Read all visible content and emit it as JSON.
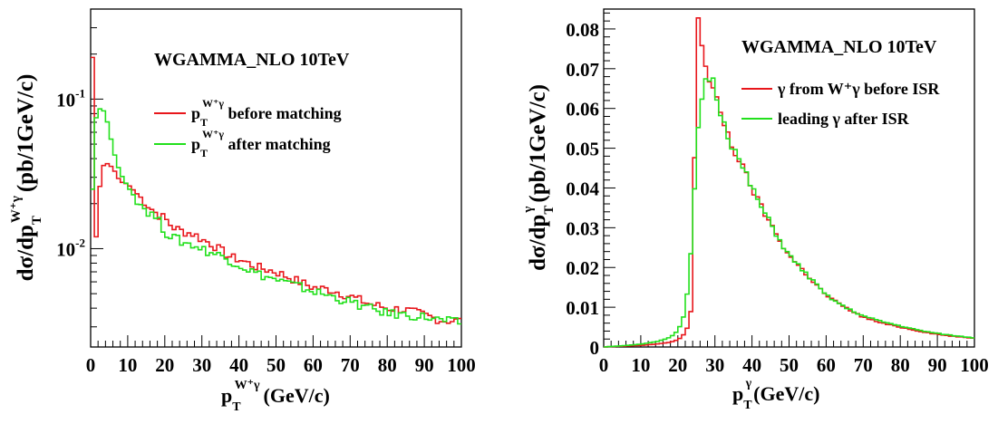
{
  "colors": {
    "before": "#e8161b",
    "after": "#22e01c",
    "axis": "#000000"
  },
  "charts": [
    {
      "title": "WGAMMA_NLO 10TeV",
      "y_label": {
        "main": "dσ/dp",
        "sub": "T",
        "sup": "W⁺γ",
        "unit": "(pb/1GeV/c)"
      },
      "x_label": {
        "main": "p",
        "sub": "T",
        "sup": "W⁺γ",
        "unit": "(GeV/c)"
      },
      "x_ticks": [
        "0",
        "10",
        "20",
        "30",
        "40",
        "50",
        "60",
        "70",
        "80",
        "90",
        "100"
      ],
      "y_ticks": [
        {
          "base": "10",
          "exp": "-1",
          "value": 0.1
        },
        {
          "base": "10",
          "exp": "-2",
          "value": 0.01
        }
      ],
      "legend": [
        {
          "main": "p",
          "sub": "T",
          "sup": "W⁺γ",
          "text": " before matching",
          "color": "#e8161b"
        },
        {
          "main": "p",
          "sub": "T",
          "sup": "W⁺γ",
          "text": " after matching",
          "color": "#22e01c"
        }
      ]
    },
    {
      "title": "WGAMMA_NLO 10TeV",
      "y_label": {
        "main": "dσ/dp",
        "sub": "T",
        "sup": "γ",
        "unit": "(pb/1GeV/c)"
      },
      "x_label": {
        "main": "p",
        "sub": "T",
        "sup": "γ",
        "unit": "(GeV/c)"
      },
      "x_ticks": [
        "0",
        "10",
        "20",
        "30",
        "40",
        "50",
        "60",
        "70",
        "80",
        "90",
        "100"
      ],
      "y_ticks": [
        "0",
        "0.01",
        "0.02",
        "0.03",
        "0.04",
        "0.05",
        "0.06",
        "0.07",
        "0.08"
      ],
      "legend": [
        {
          "text": "γ from W⁺γ before ISR",
          "color": "#e8161b"
        },
        {
          "text": "leading γ after ISR",
          "color": "#22e01c"
        }
      ]
    }
  ],
  "chart_data": [
    {
      "type": "line",
      "y_scale": "log",
      "xlim": [
        0,
        100
      ],
      "ylim": [
        0.0022,
        0.4
      ],
      "series": [
        {
          "name": "p_T^{W⁺γ} before matching",
          "color": "#e8161b",
          "x": [
            0.5,
            1,
            1.5,
            2,
            3,
            4,
            5,
            6,
            7,
            8,
            10,
            12,
            15,
            18,
            20,
            22,
            25,
            28,
            30,
            32,
            35,
            38,
            40,
            45,
            50,
            55,
            60,
            65,
            70,
            75,
            80,
            85,
            90,
            95,
            100
          ],
          "y": [
            0.19,
            0.011,
            0.012,
            0.02,
            0.034,
            0.038,
            0.036,
            0.035,
            0.031,
            0.028,
            0.027,
            0.024,
            0.02,
            0.017,
            0.016,
            0.014,
            0.013,
            0.0125,
            0.0115,
            0.011,
            0.0098,
            0.0087,
            0.0085,
            0.0075,
            0.007,
            0.0062,
            0.0055,
            0.0053,
            0.0048,
            0.0043,
            0.004,
            0.0039,
            0.0036,
            0.0033,
            0.0033
          ]
        },
        {
          "name": "p_T^{W⁺γ} after matching",
          "color": "#22e01c",
          "x": [
            0.5,
            1,
            1.5,
            2,
            3,
            4,
            5,
            6,
            7,
            8,
            10,
            12,
            15,
            18,
            20,
            22,
            25,
            28,
            30,
            32,
            35,
            38,
            40,
            45,
            50,
            55,
            60,
            65,
            70,
            75,
            80,
            85,
            90,
            95,
            100
          ],
          "y": [
            0.025,
            0.055,
            0.075,
            0.085,
            0.087,
            0.08,
            0.062,
            0.047,
            0.038,
            0.032,
            0.026,
            0.022,
            0.018,
            0.016,
            0.013,
            0.012,
            0.011,
            0.0105,
            0.01,
            0.0095,
            0.009,
            0.0083,
            0.0078,
            0.0068,
            0.0062,
            0.0057,
            0.0052,
            0.0048,
            0.0044,
            0.004,
            0.0037,
            0.0036,
            0.0035,
            0.0033,
            0.0032
          ]
        }
      ]
    },
    {
      "type": "line",
      "xlim": [
        0,
        100
      ],
      "ylim": [
        0,
        0.085
      ],
      "series": [
        {
          "name": "γ from W⁺γ before ISR",
          "color": "#e8161b",
          "x": [
            0,
            5,
            10,
            15,
            18,
            20,
            21,
            22,
            23,
            24,
            25,
            26,
            27,
            28,
            29,
            30,
            31,
            32,
            33,
            34,
            35,
            37,
            40,
            42,
            45,
            48,
            50,
            55,
            60,
            65,
            70,
            75,
            80,
            85,
            90,
            95,
            100
          ],
          "y": [
            0,
            0.0002,
            0.0004,
            0.0008,
            0.0012,
            0.0018,
            0.0025,
            0.0035,
            0.006,
            0.012,
            0.0835,
            0.082,
            0.072,
            0.068,
            0.066,
            0.063,
            0.06,
            0.058,
            0.055,
            0.052,
            0.05,
            0.046,
            0.04,
            0.036,
            0.031,
            0.026,
            0.023,
            0.018,
            0.013,
            0.01,
            0.0075,
            0.006,
            0.005,
            0.004,
            0.0032,
            0.0026,
            0.0022
          ]
        },
        {
          "name": "leading γ after ISR",
          "color": "#22e01c",
          "x": [
            0,
            5,
            10,
            15,
            18,
            20,
            21,
            22,
            23,
            24,
            25,
            26,
            27,
            28,
            29,
            30,
            31,
            32,
            33,
            34,
            35,
            37,
            40,
            42,
            45,
            48,
            50,
            55,
            60,
            65,
            70,
            75,
            80,
            85,
            90,
            95,
            100
          ],
          "y": [
            0,
            0.0003,
            0.0007,
            0.0015,
            0.0025,
            0.004,
            0.006,
            0.009,
            0.017,
            0.03,
            0.048,
            0.06,
            0.066,
            0.068,
            0.068,
            0.065,
            0.061,
            0.058,
            0.055,
            0.052,
            0.05,
            0.046,
            0.04,
            0.036,
            0.031,
            0.026,
            0.023,
            0.018,
            0.013,
            0.01,
            0.0078,
            0.0064,
            0.0053,
            0.0042,
            0.0034,
            0.0028,
            0.0023
          ]
        }
      ]
    }
  ]
}
